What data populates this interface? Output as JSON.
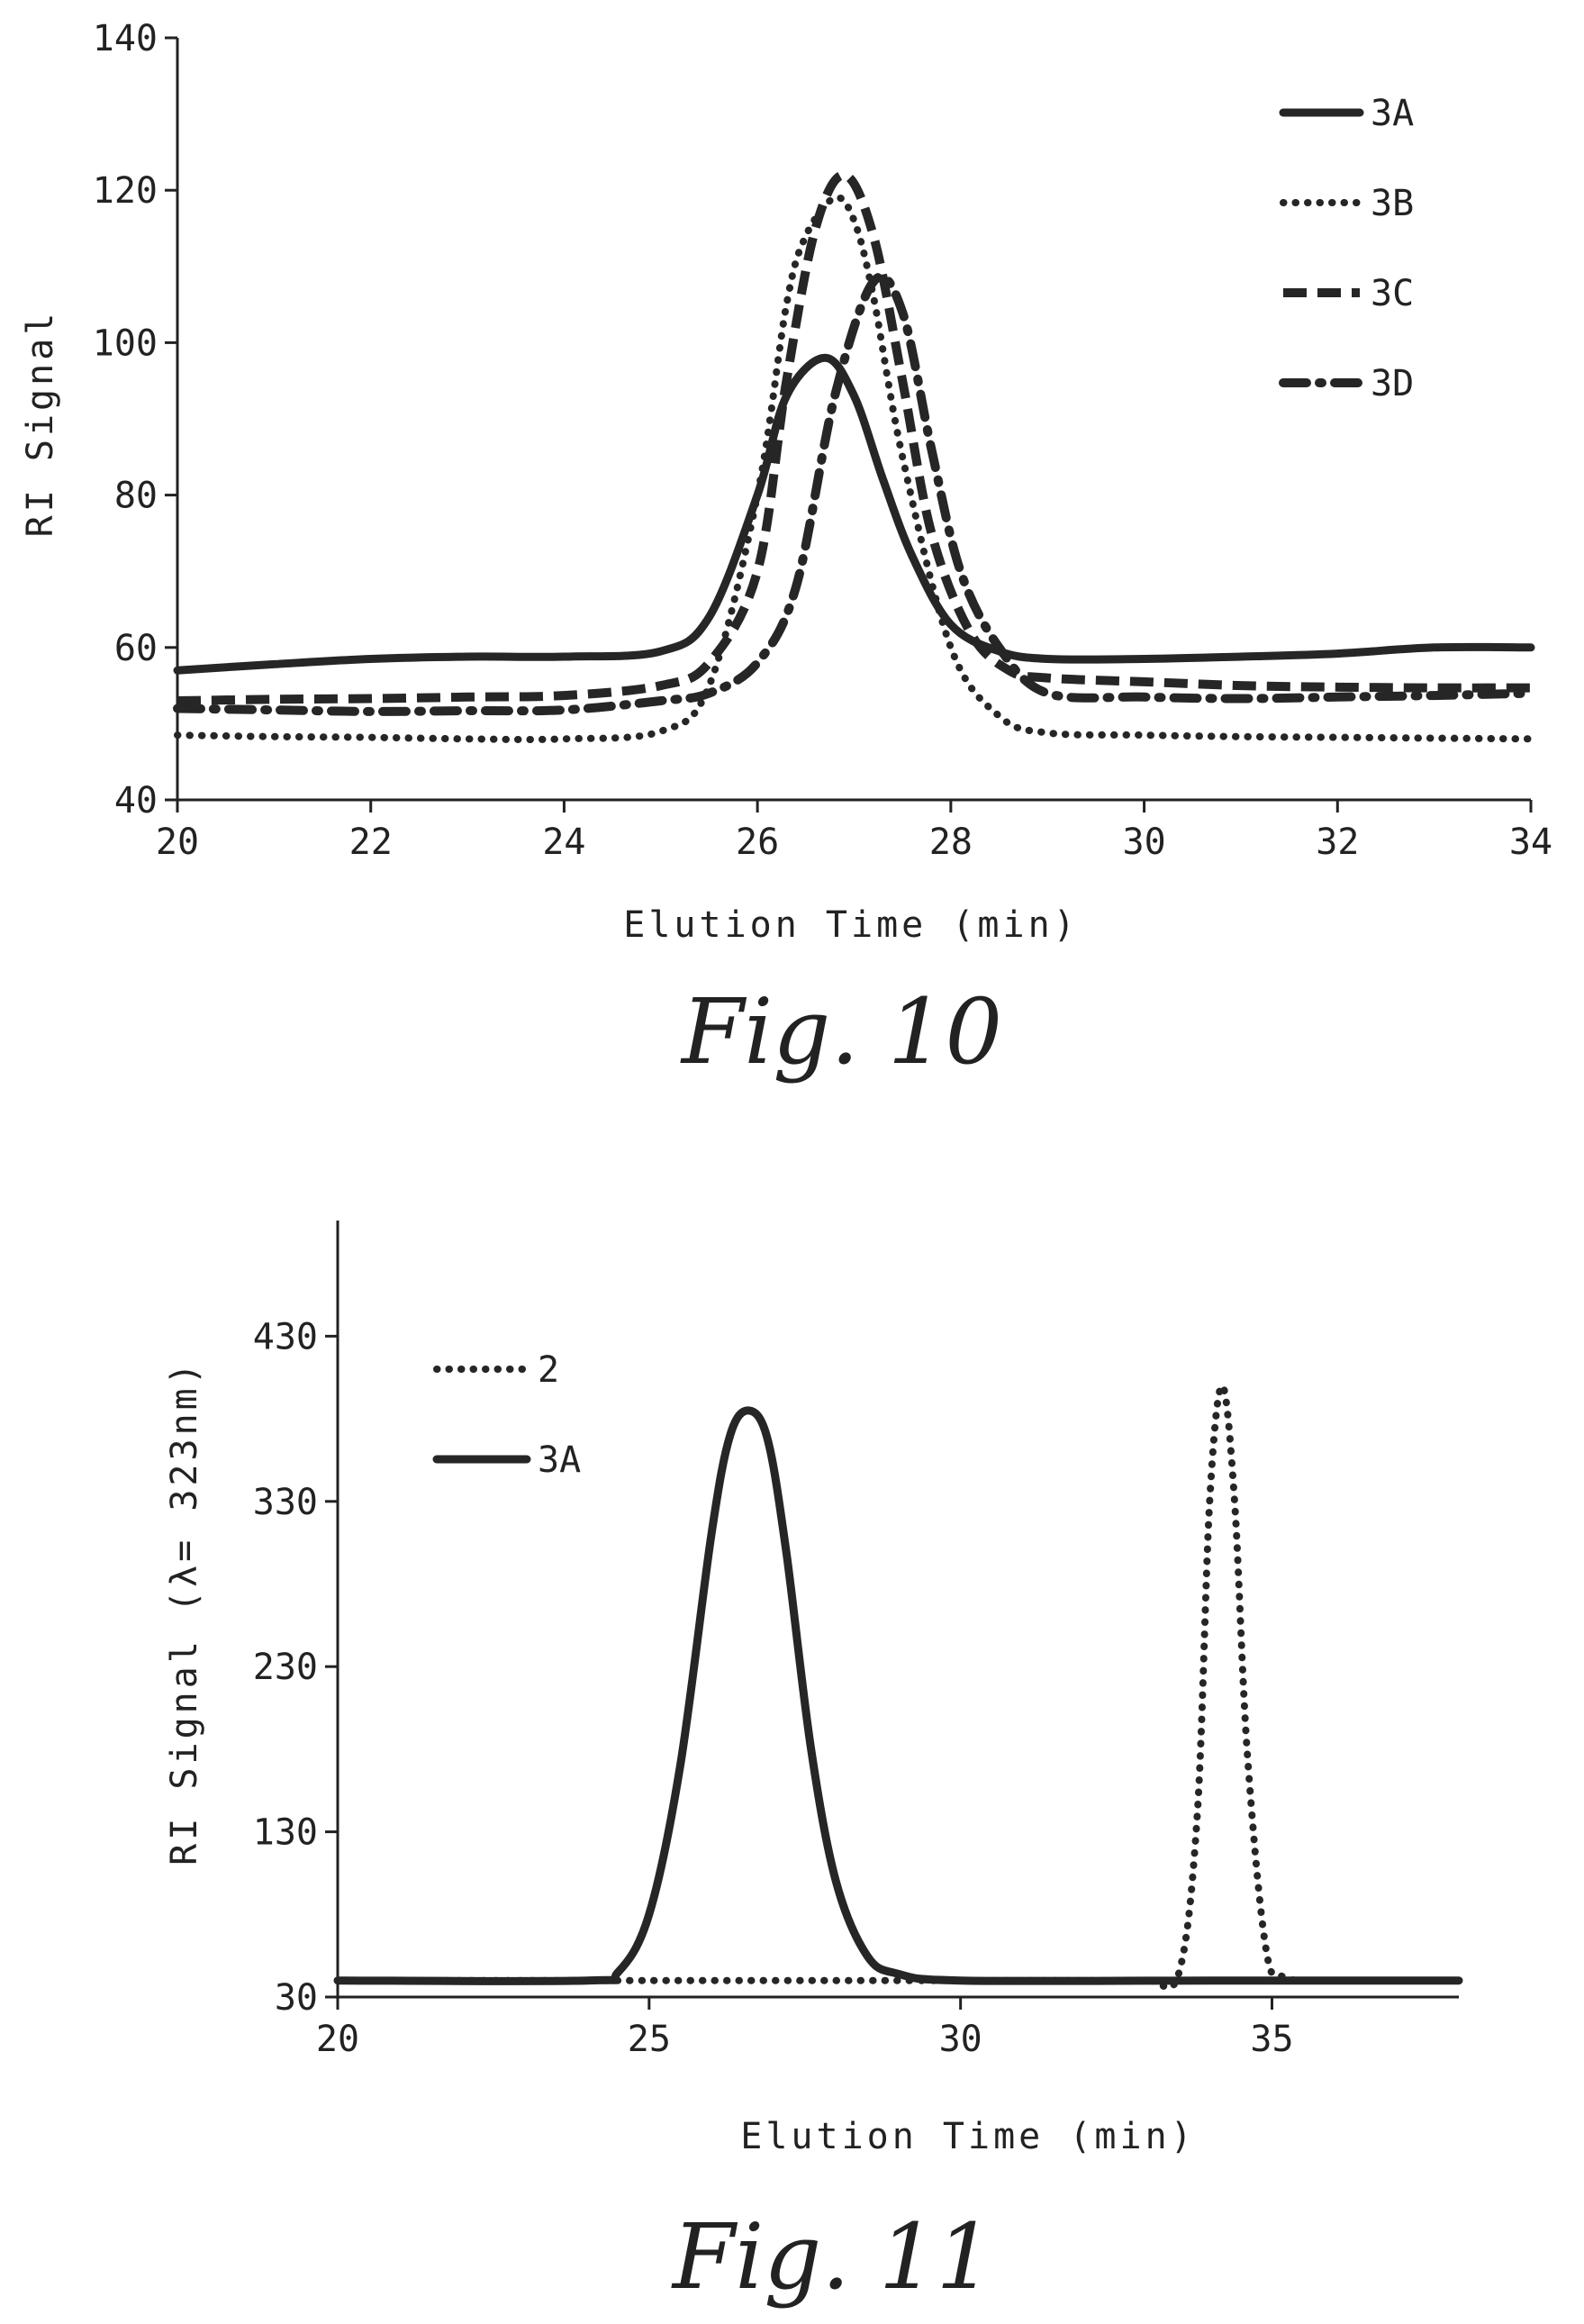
{
  "chart_data": [
    {
      "type": "line",
      "caption": "Fig. 10",
      "xlabel": "Elution Time (min)",
      "ylabel": "RI Signal",
      "xlim": [
        20,
        34
      ],
      "ylim": [
        40,
        140
      ],
      "xticks": [
        "20",
        "22",
        "24",
        "26",
        "28",
        "30",
        "32",
        "34"
      ],
      "yticks": [
        "40",
        "60",
        "80",
        "100",
        "120",
        "140"
      ],
      "legend_position": "top-right",
      "series": [
        {
          "name": "3A",
          "style": "solid",
          "x": [
            20,
            21,
            22,
            23,
            24,
            25,
            25.5,
            26,
            26.3,
            26.7,
            27,
            27.3,
            27.6,
            28,
            28.5,
            29,
            30,
            31,
            32,
            33,
            34
          ],
          "y": [
            57,
            57.8,
            58.5,
            58.8,
            58.8,
            59.5,
            64,
            80,
            93,
            98,
            93,
            82,
            72,
            63,
            59.5,
            58.5,
            58.5,
            58.8,
            59.2,
            60,
            60
          ]
        },
        {
          "name": "3B",
          "style": "dotted",
          "x": [
            20,
            21,
            22,
            23,
            24,
            25,
            25.5,
            26,
            26.3,
            26.5,
            26.8,
            27,
            27.2,
            27.5,
            28,
            28.5,
            29,
            30,
            31,
            32,
            33,
            34
          ],
          "y": [
            48.5,
            48.3,
            48.2,
            48.0,
            48.0,
            49,
            55,
            80,
            105,
            114,
            119,
            116,
            106,
            85,
            60,
            51,
            48.8,
            48.5,
            48.3,
            48.2,
            48.1,
            48.0
          ]
        },
        {
          "name": "3C",
          "style": "dashed",
          "x": [
            20,
            21,
            22,
            23,
            24,
            25,
            25.5,
            26,
            26.3,
            26.6,
            26.9,
            27.2,
            27.5,
            27.8,
            28.2,
            28.6,
            29,
            30,
            31,
            32,
            33,
            34
          ],
          "y": [
            53,
            53.2,
            53.3,
            53.5,
            53.7,
            55,
            58,
            70,
            95,
            115,
            122,
            114,
            95,
            75,
            62,
            57,
            56,
            55.5,
            55,
            54.8,
            54.7,
            54.7
          ]
        },
        {
          "name": "3D",
          "style": "dashdot",
          "x": [
            20,
            21,
            22,
            23,
            24,
            25,
            25.5,
            26,
            26.4,
            26.8,
            27.2,
            27.5,
            27.8,
            28.1,
            28.5,
            29,
            30,
            31,
            32,
            33,
            34
          ],
          "y": [
            52,
            51.8,
            51.6,
            51.7,
            51.8,
            53,
            54,
            58,
            68,
            93,
            108,
            104,
            86,
            70,
            60,
            54,
            53.5,
            53.3,
            53.5,
            53.7,
            54
          ]
        }
      ]
    },
    {
      "type": "line",
      "caption": "Fig. 11",
      "xlabel": "Elution Time (min)",
      "ylabel": "RI Signal (λ= 323nm)",
      "xlim": [
        20,
        38
      ],
      "ylim": [
        30,
        500
      ],
      "xticks": [
        "20",
        "25",
        "30",
        "35"
      ],
      "yticks": [
        "30",
        "130",
        "230",
        "330",
        "430"
      ],
      "legend_position": "top-left",
      "series": [
        {
          "name": "2",
          "style": "dotted",
          "x": [
            20,
            25,
            30,
            32,
            33,
            33.5,
            33.8,
            34.0,
            34.2,
            34.4,
            34.6,
            34.9,
            35.2,
            36,
            38
          ],
          "y": [
            40,
            40,
            40,
            40,
            40,
            44,
            140,
            330,
            400,
            330,
            180,
            60,
            42,
            40,
            40
          ]
        },
        {
          "name": "3A",
          "style": "solid",
          "x": [
            20,
            24,
            24.5,
            25,
            25.5,
            26,
            26.3,
            26.6,
            26.9,
            27.2,
            27.6,
            28,
            28.5,
            29,
            30,
            34,
            38
          ],
          "y": [
            40,
            40,
            45,
            80,
            170,
            310,
            370,
            385,
            368,
            300,
            180,
            100,
            55,
            44,
            40,
            40,
            40
          ]
        }
      ]
    }
  ]
}
